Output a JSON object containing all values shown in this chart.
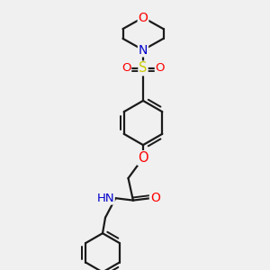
{
  "bg_color": "#f0f0f0",
  "bond_color": "#1a1a1a",
  "bond_width": 1.6,
  "dbo": 0.013,
  "atom_colors": {
    "O": "#ff0000",
    "N": "#0000cc",
    "S": "#cccc00",
    "C": "#1a1a1a",
    "H": "#666666"
  },
  "font_size": 9.5,
  "fig_size": [
    3.0,
    3.0
  ],
  "dpi": 100,
  "xlim": [
    0.0,
    1.0
  ],
  "ylim": [
    0.0,
    1.0
  ]
}
